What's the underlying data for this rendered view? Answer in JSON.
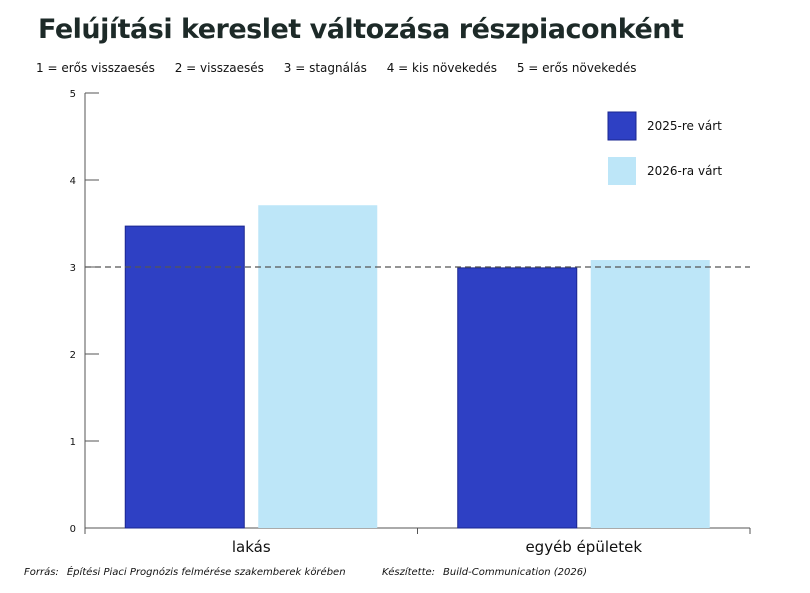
{
  "scale_legend": [
    "1 = erős visszaesés",
    "2 = visszaesés",
    "3 = stagnálás",
    "4 = kis növekedés",
    "5 = erős növekedés"
  ],
  "footer": {
    "source_label": "Forrás:",
    "source_text": "Építési Piaci Prognózis felmérése szakemberek körében",
    "author_label": "Készítette:",
    "author_text": "Build-Communication (2026)"
  },
  "colors": {
    "series_2025": "#2e40c4",
    "series_2026": "#bde6f8",
    "axis": "#555555",
    "reference_line": "#555555"
  },
  "chart_data": {
    "type": "bar",
    "title": "Felújítási kereslet változása részpiaconként",
    "categories": [
      "lakás",
      "egyéb épületek"
    ],
    "series": [
      {
        "name": "2025-re várt",
        "values": [
          3.47,
          2.99
        ]
      },
      {
        "name": "2026-ra várt",
        "values": [
          3.71,
          3.08
        ]
      }
    ],
    "ylim": [
      0,
      5
    ],
    "yticks": [
      0,
      1,
      2,
      3,
      4,
      5
    ],
    "reference_line": 3,
    "xlabel": "",
    "ylabel": "",
    "grid": false,
    "legend_position": "top-right"
  }
}
